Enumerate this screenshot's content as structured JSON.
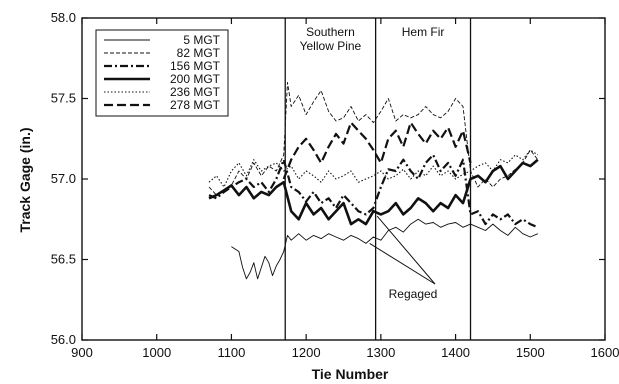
{
  "chart_data": {
    "type": "line",
    "xlabel": "Tie Number",
    "ylabel": "Track Gage (in.)",
    "xlim": [
      900,
      1600
    ],
    "ylim": [
      56.0,
      58.0
    ],
    "x_ticks": [
      "900",
      "1000",
      "1100",
      "1200",
      "1300",
      "1400",
      "1500",
      "1600"
    ],
    "y_ticks": [
      "56.0",
      "56.5",
      "57.0",
      "57.5",
      "58.0"
    ],
    "grid": false,
    "legend_position": "top-left",
    "regions": [
      {
        "label_lines": [
          "Southern",
          "Yellow Pine"
        ],
        "x_start": 1172,
        "x_end": 1293
      },
      {
        "label_lines": [
          "Hem Fir"
        ],
        "x_start": 1293,
        "x_end": 1420
      }
    ],
    "region_boundaries": [
      1172,
      1293,
      1420
    ],
    "annotations": [
      {
        "text": "Regaged",
        "points_to": [
          [
            1295,
            56.77
          ],
          [
            1285,
            56.6
          ]
        ]
      }
    ],
    "series": [
      {
        "name": "5 MGT",
        "style": "thin-solid",
        "x": [
          1100,
          1110,
          1115,
          1120,
          1125,
          1130,
          1135,
          1140,
          1145,
          1150,
          1155,
          1160,
          1165,
          1170,
          1175,
          1180,
          1190,
          1200,
          1210,
          1220,
          1230,
          1240,
          1250,
          1260,
          1270,
          1280,
          1290,
          1300,
          1310,
          1320,
          1330,
          1340,
          1350,
          1360,
          1370,
          1380,
          1390,
          1400,
          1410,
          1420,
          1430,
          1440,
          1450,
          1460,
          1470,
          1480,
          1490,
          1500,
          1510
        ],
        "values": [
          56.58,
          56.55,
          56.45,
          56.38,
          56.42,
          56.48,
          56.38,
          56.45,
          56.52,
          56.48,
          56.4,
          56.46,
          56.5,
          56.55,
          56.65,
          56.62,
          56.66,
          56.62,
          56.65,
          56.63,
          56.66,
          56.64,
          56.62,
          56.65,
          56.63,
          56.6,
          56.64,
          56.62,
          56.68,
          56.7,
          56.67,
          56.72,
          56.75,
          56.72,
          56.73,
          56.7,
          56.72,
          56.73,
          56.7,
          56.72,
          56.7,
          56.68,
          56.72,
          56.68,
          56.65,
          56.7,
          56.66,
          56.64,
          56.66
        ]
      },
      {
        "name": "82 MGT",
        "style": "thin-dashed",
        "x": [
          1070,
          1080,
          1090,
          1100,
          1110,
          1120,
          1130,
          1140,
          1150,
          1160,
          1170,
          1175,
          1180,
          1190,
          1200,
          1210,
          1220,
          1230,
          1240,
          1250,
          1260,
          1270,
          1280,
          1290,
          1300,
          1310,
          1320,
          1330,
          1340,
          1350,
          1360,
          1370,
          1380,
          1390,
          1400,
          1410,
          1420,
          1430,
          1440,
          1450,
          1460,
          1470,
          1480,
          1490,
          1500,
          1510
        ],
        "values": [
          56.95,
          56.9,
          56.93,
          56.96,
          57.05,
          57.0,
          57.1,
          57.02,
          57.08,
          57.05,
          57.15,
          57.6,
          57.45,
          57.52,
          57.4,
          57.48,
          57.55,
          57.42,
          57.36,
          57.38,
          57.45,
          57.36,
          57.4,
          57.35,
          57.42,
          57.5,
          57.36,
          57.4,
          57.38,
          57.4,
          57.45,
          57.4,
          57.38,
          57.42,
          57.5,
          57.45,
          57.05,
          56.95,
          57.0,
          56.95,
          57.0,
          57.02,
          57.06,
          57.1,
          57.18,
          57.12
        ]
      },
      {
        "name": "156 MGT",
        "style": "dash-dot",
        "x": [
          1070,
          1080,
          1090,
          1100,
          1110,
          1120,
          1130,
          1140,
          1150,
          1160,
          1170,
          1180,
          1190,
          1200,
          1210,
          1220,
          1230,
          1240,
          1250,
          1260,
          1270,
          1280,
          1290,
          1300,
          1310,
          1320,
          1330,
          1340,
          1350,
          1360,
          1370,
          1380,
          1390,
          1400,
          1410,
          1420,
          1430,
          1440,
          1450,
          1460,
          1470,
          1480,
          1490,
          1500,
          1510
        ],
        "values": [
          56.9,
          56.88,
          56.92,
          56.95,
          56.98,
          57.0,
          56.95,
          56.98,
          56.92,
          57.0,
          57.12,
          56.95,
          56.92,
          56.86,
          56.92,
          56.85,
          56.88,
          56.82,
          56.9,
          56.85,
          56.8,
          56.78,
          56.82,
          56.95,
          57.06,
          57.05,
          57.12,
          57.05,
          57.0,
          57.1,
          57.15,
          57.05,
          57.1,
          57.02,
          57.12,
          56.78,
          56.8,
          56.72,
          56.78,
          56.75,
          56.78,
          56.72,
          56.75,
          56.72,
          56.7
        ]
      },
      {
        "name": "200 MGT",
        "style": "thick-solid",
        "x": [
          1070,
          1080,
          1090,
          1100,
          1110,
          1120,
          1130,
          1140,
          1150,
          1160,
          1170,
          1180,
          1190,
          1200,
          1210,
          1220,
          1230,
          1240,
          1250,
          1260,
          1270,
          1280,
          1290,
          1300,
          1310,
          1320,
          1330,
          1340,
          1350,
          1360,
          1370,
          1380,
          1390,
          1400,
          1410,
          1420,
          1430,
          1440,
          1450,
          1460,
          1470,
          1480,
          1490,
          1500,
          1510
        ],
        "values": [
          56.88,
          56.9,
          56.93,
          56.96,
          56.9,
          56.95,
          56.88,
          56.92,
          56.9,
          56.95,
          56.98,
          56.8,
          56.75,
          56.85,
          56.78,
          56.82,
          56.75,
          56.8,
          56.85,
          56.72,
          56.75,
          56.72,
          56.8,
          56.78,
          56.8,
          56.85,
          56.78,
          56.82,
          56.88,
          56.85,
          56.8,
          56.85,
          56.82,
          56.9,
          56.85,
          57.0,
          57.02,
          56.98,
          57.05,
          57.08,
          57.0,
          57.05,
          57.1,
          57.08,
          57.12
        ]
      },
      {
        "name": "236 MGT",
        "style": "dotted",
        "x": [
          1070,
          1080,
          1090,
          1100,
          1110,
          1120,
          1130,
          1140,
          1150,
          1160,
          1170,
          1180,
          1190,
          1200,
          1210,
          1220,
          1230,
          1240,
          1250,
          1260,
          1270,
          1280,
          1290,
          1300,
          1310,
          1320,
          1330,
          1340,
          1350,
          1360,
          1370,
          1380,
          1390,
          1400,
          1410,
          1420,
          1430,
          1440,
          1450,
          1460,
          1470,
          1480,
          1490,
          1500,
          1510
        ],
        "values": [
          56.98,
          57.02,
          56.95,
          57.05,
          57.1,
          57.02,
          57.12,
          57.05,
          57.08,
          57.1,
          57.05,
          57.08,
          57.0,
          57.05,
          57.02,
          56.98,
          57.05,
          57.0,
          57.02,
          57.05,
          56.98,
          57.0,
          57.02,
          57.05,
          57.0,
          57.02,
          57.06,
          57.0,
          57.05,
          57.02,
          57.08,
          57.02,
          57.05,
          57.0,
          57.03,
          57.05,
          57.08,
          57.1,
          57.05,
          57.12,
          57.1,
          57.15,
          57.12,
          57.18,
          57.15
        ]
      },
      {
        "name": "278 MGT",
        "style": "long-dash",
        "x": [
          1170,
          1180,
          1190,
          1200,
          1210,
          1220,
          1230,
          1240,
          1250,
          1260,
          1270,
          1280,
          1290,
          1300,
          1310,
          1320,
          1330,
          1340,
          1350,
          1360,
          1370,
          1380,
          1390,
          1400,
          1410,
          1420
        ],
        "values": [
          57.0,
          57.12,
          57.2,
          57.25,
          57.18,
          57.1,
          57.2,
          57.28,
          57.22,
          57.35,
          57.3,
          57.25,
          57.18,
          57.1,
          57.25,
          57.3,
          57.2,
          57.35,
          57.28,
          57.22,
          57.3,
          57.25,
          57.32,
          57.2,
          57.3,
          57.1
        ]
      }
    ]
  }
}
